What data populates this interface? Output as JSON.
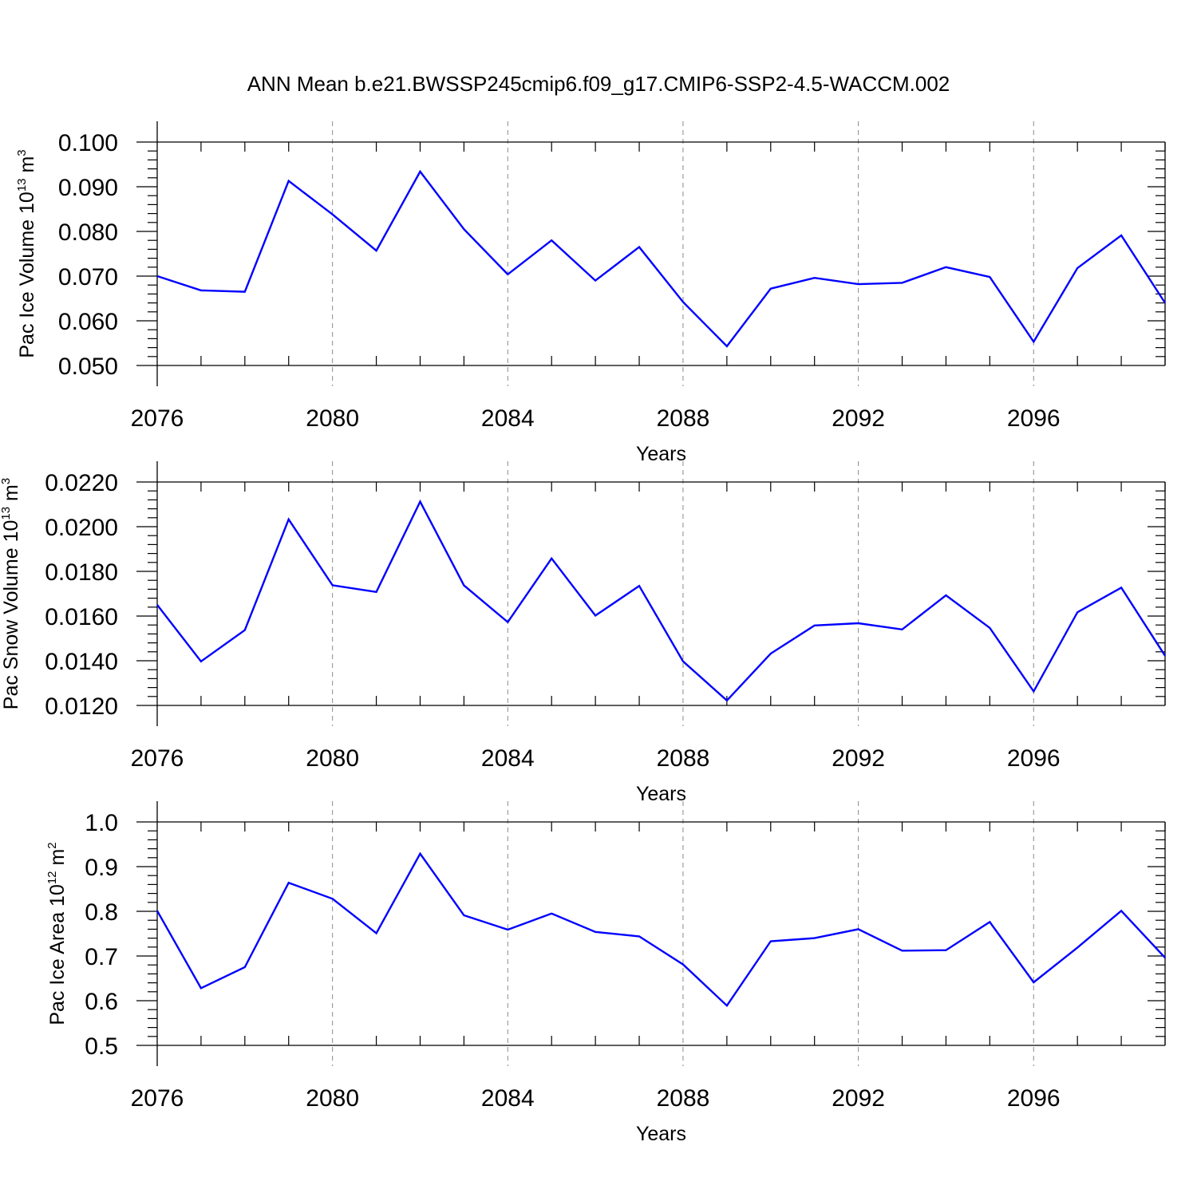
{
  "title": "ANN Mean b.e21.BWSSP245cmip6.f09_g17.CMIP6-SSP2-4.5-WACCM.002",
  "line_color": "#0000ff",
  "chart_data": [
    {
      "type": "line",
      "ylabel": {
        "text": "Pac Ice Volume 10",
        "superscript": "13",
        "unit": " m",
        "unit_superscript": "3"
      },
      "xlabel": "Years",
      "xlim": [
        2076,
        2099
      ],
      "ylim": [
        0.05,
        0.1
      ],
      "x_ticks": [
        2076,
        2080,
        2084,
        2088,
        2092,
        2096
      ],
      "x_tick_labels": [
        "2076",
        "2080",
        "2084",
        "2088",
        "2092",
        "2096"
      ],
      "y_ticks": [
        0.05,
        0.06,
        0.07,
        0.08,
        0.09,
        0.1
      ],
      "y_tick_labels": [
        "0.050",
        "0.060",
        "0.070",
        "0.080",
        "0.090",
        "0.100"
      ],
      "y_minor_step": 0.002,
      "grid": "dashed vertical at major x ticks",
      "series": [
        {
          "name": "Pac Ice Volume",
          "x": [
            2076,
            2077,
            2078,
            2079,
            2080,
            2081,
            2082,
            2083,
            2084,
            2085,
            2086,
            2087,
            2088,
            2089,
            2090,
            2091,
            2092,
            2093,
            2094,
            2095,
            2096,
            2097,
            2098,
            2099
          ],
          "y": [
            0.07,
            0.0668,
            0.0665,
            0.0913,
            0.0838,
            0.0757,
            0.0934,
            0.0805,
            0.0704,
            0.078,
            0.069,
            0.0765,
            0.0642,
            0.0543,
            0.0672,
            0.0696,
            0.0682,
            0.0685,
            0.072,
            0.0698,
            0.0553,
            0.0718,
            0.0791,
            0.064
          ]
        }
      ]
    },
    {
      "type": "line",
      "ylabel": {
        "text": "Pac Snow Volume 10",
        "superscript": "13",
        "unit": " m",
        "unit_superscript": "3"
      },
      "xlabel": "Years",
      "xlim": [
        2076,
        2099
      ],
      "ylim": [
        0.012,
        0.022
      ],
      "x_ticks": [
        2076,
        2080,
        2084,
        2088,
        2092,
        2096
      ],
      "x_tick_labels": [
        "2076",
        "2080",
        "2084",
        "2088",
        "2092",
        "2096"
      ],
      "y_ticks": [
        0.012,
        0.014,
        0.016,
        0.018,
        0.02,
        0.022
      ],
      "y_tick_labels": [
        "0.0120",
        "0.0140",
        "0.0160",
        "0.0180",
        "0.0200",
        "0.0220"
      ],
      "y_minor_step": 0.0004,
      "grid": "dashed vertical at major x ticks",
      "series": [
        {
          "name": "Pac Snow Volume",
          "x": [
            2076,
            2077,
            2078,
            2079,
            2080,
            2081,
            2082,
            2083,
            2084,
            2085,
            2086,
            2087,
            2088,
            2089,
            2090,
            2091,
            2092,
            2093,
            2094,
            2095,
            2096,
            2097,
            2098,
            2099
          ],
          "y": [
            0.0165,
            0.01397,
            0.01537,
            0.02033,
            0.01738,
            0.01708,
            0.02112,
            0.01737,
            0.01573,
            0.01858,
            0.01602,
            0.01735,
            0.01397,
            0.01222,
            0.01432,
            0.01558,
            0.01568,
            0.0154,
            0.01693,
            0.01547,
            0.01263,
            0.01617,
            0.01727,
            0.01422
          ]
        }
      ]
    },
    {
      "type": "line",
      "ylabel": {
        "text": "Pac Ice Area 10",
        "superscript": "12",
        "unit": " m",
        "unit_superscript": "2"
      },
      "xlabel": "Years",
      "xlim": [
        2076,
        2099
      ],
      "ylim": [
        0.5,
        1.0
      ],
      "x_ticks": [
        2076,
        2080,
        2084,
        2088,
        2092,
        2096
      ],
      "x_tick_labels": [
        "2076",
        "2080",
        "2084",
        "2088",
        "2092",
        "2096"
      ],
      "y_ticks": [
        0.5,
        0.6,
        0.7,
        0.8,
        0.9,
        1.0
      ],
      "y_tick_labels": [
        "0.5",
        "0.6",
        "0.7",
        "0.8",
        "0.9",
        "1.0"
      ],
      "y_minor_step": 0.02,
      "grid": "dashed vertical at major x ticks",
      "series": [
        {
          "name": "Pac Ice Area",
          "x": [
            2076,
            2077,
            2078,
            2079,
            2080,
            2081,
            2082,
            2083,
            2084,
            2085,
            2086,
            2087,
            2088,
            2089,
            2090,
            2091,
            2092,
            2093,
            2094,
            2095,
            2096,
            2097,
            2098,
            2099
          ],
          "y": [
            0.801,
            0.628,
            0.675,
            0.864,
            0.828,
            0.751,
            0.929,
            0.791,
            0.759,
            0.795,
            0.754,
            0.744,
            0.681,
            0.589,
            0.733,
            0.74,
            0.76,
            0.712,
            0.713,
            0.776,
            0.641,
            0.719,
            0.801,
            0.696
          ]
        }
      ]
    }
  ]
}
